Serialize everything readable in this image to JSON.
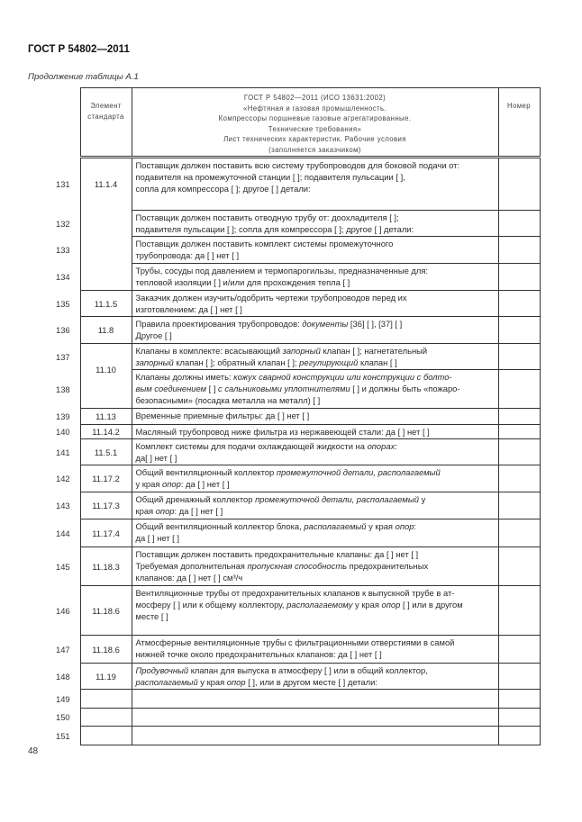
{
  "header": {
    "doc_title": "ГОСТ Р 54802—2011",
    "caption": "Продолжение таблицы А.1"
  },
  "table": {
    "col_element": "Элемент\nстандарта",
    "col_title_lines": [
      "ГОСТ Р 54802—2011 (ИСО 13631:2002)",
      "«Нефтяная и газовая промышленность.",
      "Компрессоры поршневые газовые агрегатированные.",
      "Технические требования»",
      "Лист технических характеристик. Рабочие условия",
      "(заполняется заказчиком)"
    ],
    "col_number": "Номер",
    "rows": [
      {
        "num": "131",
        "element": "11.1.4",
        "span": 4,
        "desc": [
          {
            "t": "Поставщик должен поставить всю систему трубопроводов для боковой подачи от:\nподавителя на промежуточной станции [   ]; подавителя пульсации [   ],\nсопла для компрессора [   ]; другое [   ] детали:"
          }
        ]
      },
      {
        "num": "132",
        "desc": [
          {
            "t": "Поставщик должен поставить отводную трубу от: доохладителя [   ];\nподавителя пульсации [   ]; сопла для компрессора [   ]; другое [   ] детали:"
          }
        ]
      },
      {
        "num": "133",
        "desc": [
          {
            "t": "Поставщик должен поставить комплект системы промежуточного\nтрубопровода: да [   ]    нет [   ]"
          }
        ]
      },
      {
        "num": "134",
        "desc": [
          {
            "t": "Трубы, сосуды под давлением и термопарогильзы, предназначенные для:\nтепловой изоляции [   ] и/или для прохождения тепла [   ]"
          }
        ]
      },
      {
        "num": "135",
        "element": "11.1.5",
        "desc": [
          {
            "t": "Заказчик должен изучить/одобрить чертежи трубопроводов перед их\nизготовлением: да [   ]    нет [   ]"
          }
        ]
      },
      {
        "num": "136",
        "element": "11.8",
        "desc": [
          {
            "t": "Правила проектирования трубопроводов: "
          },
          {
            "t": "документы",
            "i": true
          },
          {
            "t": " [36] [   ], [37] [   ]\nДругое [   ]"
          }
        ]
      },
      {
        "num": "137",
        "element": "11.10",
        "span": 2,
        "desc": [
          {
            "t": "Клапаны в комплекте: всасывающий "
          },
          {
            "t": "запорный",
            "i": true
          },
          {
            "t": " клапан [   ]; нагнетательный\n"
          },
          {
            "t": "запорный",
            "i": true
          },
          {
            "t": " клапан [   ]; обратный клапан [   ]; "
          },
          {
            "t": "регулирующий",
            "i": true
          },
          {
            "t": " клапан [   ]"
          }
        ]
      },
      {
        "num": "138",
        "desc": [
          {
            "t": "Клапаны должны иметь: "
          },
          {
            "t": "кожух сварной конструкции или конструкции с болто-\nвым соединением",
            "i": true
          },
          {
            "t": " [   ] "
          },
          {
            "t": "с сальниковыми уплотнителями",
            "i": true
          },
          {
            "t": " [   ] и должны быть «пожаро-\nбезопасными» (посадка металла на металл) [   ]"
          }
        ]
      },
      {
        "num": "139",
        "element": "11.13",
        "desc": [
          {
            "t": "Временные приемные фильтры: да [   ]    нет [   ]"
          }
        ]
      },
      {
        "num": "140",
        "element": "11.14.2",
        "desc": [
          {
            "t": "Масляный трубопровод ниже фильтра из нержавеющей стали: да [   ]   нет [   ]"
          }
        ]
      },
      {
        "num": "141",
        "element": "11.5.1",
        "desc": [
          {
            "t": "Комплект системы для подачи охлаждающей жидкости на "
          },
          {
            "t": "опорах",
            "i": true
          },
          {
            "t": ":\nда[   ] нет [   ]"
          }
        ]
      },
      {
        "num": "142",
        "element": "11.17.2",
        "desc": [
          {
            "t": "Общий вентиляционный коллектор "
          },
          {
            "t": "промежуточной детали, располагаемый",
            "i": true
          },
          {
            "t": "\nу края "
          },
          {
            "t": "опор",
            "i": true
          },
          {
            "t": ": да [   ]    нет [   ]"
          }
        ]
      },
      {
        "num": "143",
        "element": "11.17.3",
        "desc": [
          {
            "t": "Общий дренажный коллектор "
          },
          {
            "t": "промежуточной детали, располагаемый",
            "i": true
          },
          {
            "t": "   у\nкрая "
          },
          {
            "t": "опор",
            "i": true
          },
          {
            "t": ": да [   ]    нет [   ]"
          }
        ]
      },
      {
        "num": "144",
        "element": "11.17.4",
        "desc": [
          {
            "t": "Общий вентиляционный коллектор блока, "
          },
          {
            "t": "располагаемый",
            "i": true
          },
          {
            "t": " у края "
          },
          {
            "t": "опор",
            "i": true
          },
          {
            "t": ":\nда [   ]    нет [   ]"
          }
        ]
      },
      {
        "num": "145",
        "element": "11.18.3",
        "desc": [
          {
            "t": "Поставщик должен поставить предохранительные клапаны: да [   ]    нет [   ]\nТребуемая дополнительная "
          },
          {
            "t": "пропускная способность",
            "i": true
          },
          {
            "t": " предохранительных\nклапанов: да [   ]    нет [   ]                             см³/ч"
          }
        ]
      },
      {
        "num": "146",
        "element": "11.18.6",
        "desc": [
          {
            "t": "Вентиляционные трубы от предохранительных клапанов к выпускной трубе в ат-\nмосферу [   ] или к общему коллектору, "
          },
          {
            "t": "располагаемому",
            "i": true
          },
          {
            "t": " у края "
          },
          {
            "t": "опор",
            "i": true
          },
          {
            "t": " [   ] или в другом\nместе [   ]"
          }
        ]
      },
      {
        "num": "147",
        "element": "11.18.6",
        "desc": [
          {
            "t": "Атмосферные вентиляционные трубы с фильтрационными отверстиями в самой\nнижней точке около предохранительных клапанов: да [   ]    нет [   ]"
          }
        ]
      },
      {
        "num": "148",
        "element": "11.19",
        "desc": [
          {
            "t": "Продувочный",
            "i": true
          },
          {
            "t": " клапан для выпуска в атмосферу [   ] или в общий коллектор,\n"
          },
          {
            "t": "располагаемый",
            "i": true
          },
          {
            "t": " у края "
          },
          {
            "t": "опор",
            "i": true
          },
          {
            "t": " [   ], или в другом месте [   ] детали:"
          }
        ]
      },
      {
        "num": "149",
        "element": "",
        "desc": []
      },
      {
        "num": "150",
        "element": "",
        "desc": []
      },
      {
        "num": "151",
        "element": "",
        "desc": []
      }
    ]
  },
  "footer": {
    "page_number": "48"
  }
}
